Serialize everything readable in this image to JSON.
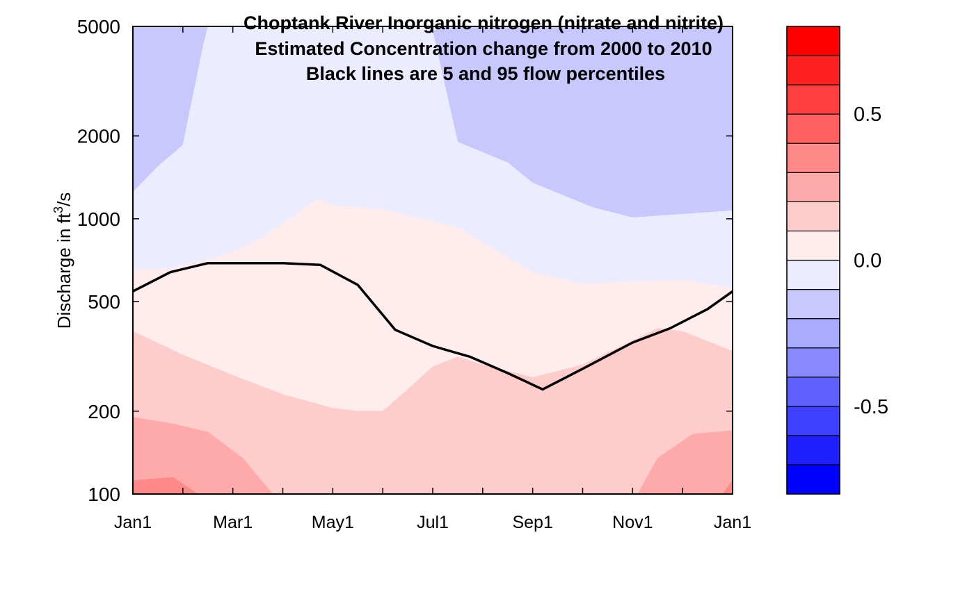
{
  "chart_data": {
    "type": "heatmap",
    "title_lines": [
      "Choptank River  Inorganic nitrogen (nitrate and nitrite)",
      "Estimated Concentration change from 2000 to 2010",
      "Black lines are 5 and 95 flow percentiles"
    ],
    "ylabel": {
      "pre": "Discharge in ft",
      "sup": "3",
      "post": "/s"
    },
    "y_scale": "log",
    "ylim": [
      100,
      5000
    ],
    "y_ticks": [
      {
        "value": 5000,
        "label": "5000"
      },
      {
        "value": 2000,
        "label": "2000"
      },
      {
        "value": 1000,
        "label": "1000"
      },
      {
        "value": 500,
        "label": "500"
      },
      {
        "value": 200,
        "label": "200"
      },
      {
        "value": 100,
        "label": "100"
      }
    ],
    "xlim": [
      0,
      12
    ],
    "x_ticks": [
      {
        "value": 0,
        "label": "Jan1"
      },
      {
        "value": 2,
        "label": "Mar1"
      },
      {
        "value": 4,
        "label": "May1"
      },
      {
        "value": 6,
        "label": "Jul1"
      },
      {
        "value": 8,
        "label": "Sep1"
      },
      {
        "value": 10,
        "label": "Nov1"
      },
      {
        "value": 12,
        "label": "Jan1"
      }
    ],
    "x_minor_ticks": [
      1,
      3,
      5,
      7,
      9,
      11
    ],
    "colorbar": {
      "levels": [
        -0.8,
        -0.7,
        -0.6,
        -0.5,
        -0.4,
        -0.3,
        -0.2,
        -0.1,
        0.0,
        0.1,
        0.2,
        0.3,
        0.4,
        0.5,
        0.6,
        0.7,
        0.8
      ],
      "colors": [
        "#0000ff",
        "#2020ff",
        "#4040ff",
        "#6060ff",
        "#8888ff",
        "#aaaaff",
        "#c8c8ff",
        "#ececff",
        "#ffecec",
        "#ffcccc",
        "#ffaaaa",
        "#ff8888",
        "#ff6060",
        "#ff4040",
        "#ff2020",
        "#ff0000"
      ],
      "tick_labels": [
        {
          "value": 0.5,
          "label": "0.5"
        },
        {
          "value": 0.0,
          "label": "0.0"
        },
        {
          "value": -0.5,
          "label": "-0.5"
        }
      ]
    },
    "contour_regions": [
      {
        "level_range": [
          -0.2,
          -0.1
        ],
        "color": "#c8c8ff",
        "points": [
          [
            0,
            5000
          ],
          [
            12,
            5000
          ],
          [
            12,
            1070
          ],
          [
            11,
            1040
          ],
          [
            10,
            1010
          ],
          [
            9.2,
            1100
          ],
          [
            8,
            1350
          ],
          [
            7.5,
            1600
          ],
          [
            6.5,
            1900
          ],
          [
            6,
            4800
          ],
          [
            6.2,
            5000
          ],
          [
            1.5,
            5000
          ],
          [
            1.4,
            4200
          ],
          [
            1,
            1850
          ],
          [
            0.5,
            1550
          ],
          [
            0,
            1250
          ]
        ]
      },
      {
        "level_range": [
          -0.1,
          0.0
        ],
        "color": "#ececff",
        "points": [
          [
            0,
            1250
          ],
          [
            0.5,
            1550
          ],
          [
            1,
            1850
          ],
          [
            1.4,
            4200
          ],
          [
            1.5,
            5000
          ],
          [
            6.2,
            5000
          ],
          [
            6,
            4800
          ],
          [
            6.5,
            1900
          ],
          [
            7.5,
            1600
          ],
          [
            8,
            1350
          ],
          [
            9.2,
            1100
          ],
          [
            10,
            1010
          ],
          [
            11,
            1040
          ],
          [
            12,
            1070
          ],
          [
            12,
            560
          ],
          [
            11,
            600
          ],
          [
            10,
            590
          ],
          [
            9,
            580
          ],
          [
            8,
            640
          ],
          [
            6.5,
            930
          ],
          [
            5,
            1080
          ],
          [
            4,
            1120
          ],
          [
            3.7,
            1180
          ],
          [
            3,
            960
          ],
          [
            2.5,
            840
          ],
          [
            2,
            760
          ],
          [
            1.5,
            710
          ],
          [
            0.7,
            660
          ],
          [
            0,
            650
          ]
        ]
      },
      {
        "level_range": [
          0.0,
          0.1
        ],
        "color": "#ffecec",
        "points": [
          [
            0,
            650
          ],
          [
            0.7,
            660
          ],
          [
            1.5,
            710
          ],
          [
            2,
            760
          ],
          [
            2.5,
            840
          ],
          [
            3,
            960
          ],
          [
            3.7,
            1180
          ],
          [
            4,
            1120
          ],
          [
            5,
            1080
          ],
          [
            6.5,
            930
          ],
          [
            8,
            640
          ],
          [
            9,
            580
          ],
          [
            10,
            590
          ],
          [
            11,
            600
          ],
          [
            12,
            560
          ],
          [
            12,
            330
          ],
          [
            11,
            390
          ],
          [
            10.5,
            400
          ],
          [
            10,
            360
          ],
          [
            9,
            295
          ],
          [
            8,
            265
          ],
          [
            7,
            295
          ],
          [
            6.5,
            315
          ],
          [
            6,
            290
          ],
          [
            5.5,
            240
          ],
          [
            5,
            200
          ],
          [
            4.5,
            200
          ],
          [
            4,
            205
          ],
          [
            3,
            230
          ],
          [
            2,
            270
          ],
          [
            1,
            320
          ],
          [
            0.7,
            340
          ],
          [
            0,
            390
          ]
        ]
      },
      {
        "level_range": [
          0.1,
          0.2
        ],
        "color": "#ffcccc",
        "points": [
          [
            0,
            390
          ],
          [
            0.7,
            340
          ],
          [
            1,
            320
          ],
          [
            2,
            270
          ],
          [
            3,
            230
          ],
          [
            4,
            205
          ],
          [
            4.5,
            200
          ],
          [
            5,
            200
          ],
          [
            5.5,
            240
          ],
          [
            6,
            290
          ],
          [
            6.5,
            315
          ],
          [
            7,
            295
          ],
          [
            8,
            265
          ],
          [
            9,
            295
          ],
          [
            10,
            360
          ],
          [
            10.5,
            400
          ],
          [
            11,
            390
          ],
          [
            12,
            330
          ],
          [
            12,
            170
          ],
          [
            11.2,
            165
          ],
          [
            10.5,
            135
          ],
          [
            10.1,
            100
          ],
          [
            2.8,
            100
          ],
          [
            2.2,
            135
          ],
          [
            1.5,
            168
          ],
          [
            0.8,
            180
          ],
          [
            0,
            190
          ]
        ]
      },
      {
        "level_range": [
          0.2,
          0.3
        ],
        "color": "#ffaaaa",
        "points": [
          [
            0,
            190
          ],
          [
            0.8,
            180
          ],
          [
            1.5,
            168
          ],
          [
            2.2,
            135
          ],
          [
            2.8,
            100
          ],
          [
            1.3,
            100
          ],
          [
            0.8,
            115
          ],
          [
            0,
            112
          ]
        ]
      },
      {
        "level_range": [
          0.2,
          0.3
        ],
        "color": "#ffaaaa",
        "points": [
          [
            12,
            170
          ],
          [
            11.2,
            165
          ],
          [
            10.5,
            135
          ],
          [
            10.1,
            100
          ],
          [
            12,
            100
          ]
        ]
      },
      {
        "level_range": [
          0.3,
          0.4
        ],
        "color": "#ff8888",
        "points": [
          [
            0,
            112
          ],
          [
            0.8,
            115
          ],
          [
            1.3,
            100
          ],
          [
            0,
            100
          ]
        ]
      },
      {
        "level_range": [
          0.3,
          0.4
        ],
        "color": "#ff8888",
        "points": [
          [
            12,
            112
          ],
          [
            11.8,
            100
          ],
          [
            12,
            100
          ]
        ]
      }
    ],
    "flow_percentile_lines": [
      {
        "percentile": "95",
        "points": [
          [
            0,
            545
          ],
          [
            0.75,
            640
          ],
          [
            1.5,
            690
          ],
          [
            3,
            690
          ],
          [
            3.75,
            680
          ],
          [
            4.5,
            575
          ],
          [
            5.25,
            395
          ],
          [
            6,
            345
          ],
          [
            6.75,
            315
          ],
          [
            7.5,
            275
          ],
          [
            8.2,
            240
          ],
          [
            9,
            285
          ],
          [
            10,
            355
          ],
          [
            10.75,
            400
          ],
          [
            11.5,
            470
          ],
          [
            12,
            545
          ]
        ]
      }
    ]
  }
}
